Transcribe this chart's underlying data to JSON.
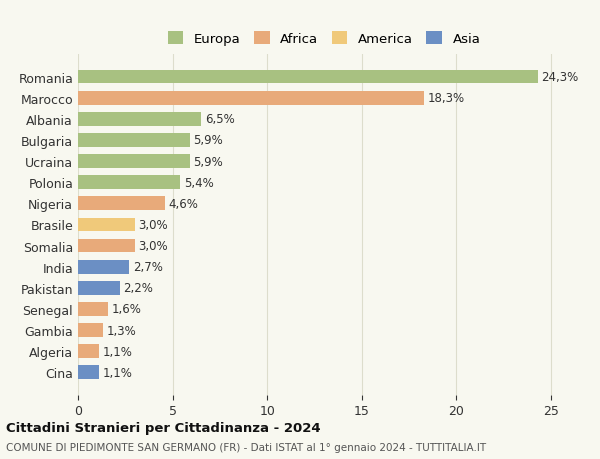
{
  "categories": [
    "Romania",
    "Marocco",
    "Albania",
    "Bulgaria",
    "Ucraina",
    "Polonia",
    "Nigeria",
    "Brasile",
    "Somalia",
    "India",
    "Pakistan",
    "Senegal",
    "Gambia",
    "Algeria",
    "Cina"
  ],
  "values": [
    24.3,
    18.3,
    6.5,
    5.9,
    5.9,
    5.4,
    4.6,
    3.0,
    3.0,
    2.7,
    2.2,
    1.6,
    1.3,
    1.1,
    1.1
  ],
  "labels": [
    "24,3%",
    "18,3%",
    "6,5%",
    "5,9%",
    "5,9%",
    "5,4%",
    "4,6%",
    "3,0%",
    "3,0%",
    "2,7%",
    "2,2%",
    "1,6%",
    "1,3%",
    "1,1%",
    "1,1%"
  ],
  "colors": [
    "#a8c181",
    "#e8aa7a",
    "#a8c181",
    "#a8c181",
    "#a8c181",
    "#a8c181",
    "#e8aa7a",
    "#f0c97a",
    "#e8aa7a",
    "#6b8fc4",
    "#6b8fc4",
    "#e8aa7a",
    "#e8aa7a",
    "#e8aa7a",
    "#6b8fc4"
  ],
  "legend_labels": [
    "Europa",
    "Africa",
    "America",
    "Asia"
  ],
  "legend_colors": [
    "#a8c181",
    "#e8aa7a",
    "#f0c97a",
    "#6b8fc4"
  ],
  "xlim": [
    0,
    26
  ],
  "xticks": [
    0,
    5,
    10,
    15,
    20,
    25
  ],
  "title": "Cittadini Stranieri per Cittadinanza - 2024",
  "subtitle": "COMUNE DI PIEDIMONTE SAN GERMANO (FR) - Dati ISTAT al 1° gennaio 2024 - TUTTITALIA.IT",
  "background_color": "#f8f8f0",
  "grid_color": "#ddddcc",
  "bar_height": 0.65
}
